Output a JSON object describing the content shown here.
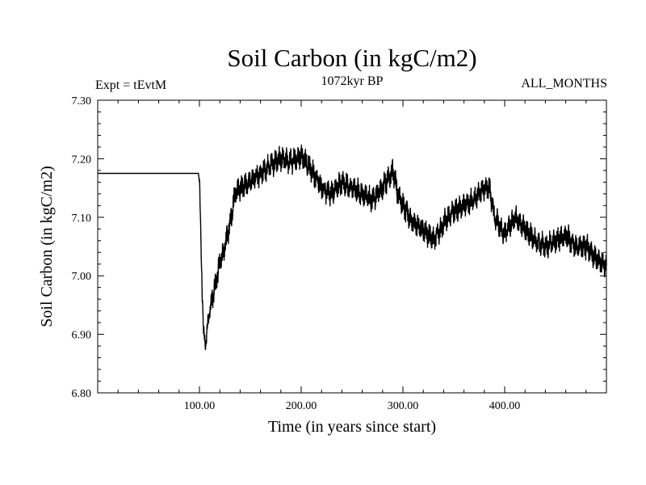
{
  "chart_data": {
    "type": "line",
    "title": "Soil Carbon (in kgC/m2)",
    "subtitle_left": "Expt = tEvtM",
    "subtitle_center": "1072kyr BP",
    "subtitle_right": "ALL_MONTHS",
    "xlabel": "Time (in years since start)",
    "ylabel": "Soil Carbon (in kgC/m2)",
    "xlim": [
      0,
      500
    ],
    "ylim": [
      6.8,
      7.3
    ],
    "x_ticks": [
      100,
      200,
      300,
      400
    ],
    "x_tick_labels": [
      "100.00",
      "200.00",
      "300.00",
      "400.00"
    ],
    "y_ticks": [
      6.8,
      6.9,
      7.0,
      7.1,
      7.2,
      7.3
    ],
    "y_tick_labels": [
      "6.80",
      "6.90",
      "7.00",
      "7.10",
      "7.20",
      "7.30"
    ],
    "grid": false,
    "series": [
      {
        "name": "Soil Carbon",
        "color": "#000000",
        "x": [
          0,
          99,
          100,
          102,
          104,
          106,
          110,
          115,
          120,
          125,
          130,
          135,
          140,
          150,
          160,
          170,
          180,
          190,
          200,
          205,
          210,
          220,
          230,
          240,
          250,
          260,
          270,
          280,
          290,
          295,
          300,
          310,
          320,
          330,
          340,
          350,
          360,
          370,
          380,
          385,
          390,
          400,
          410,
          420,
          430,
          440,
          450,
          460,
          470,
          480,
          490,
          500
        ],
        "values": [
          7.175,
          7.175,
          7.16,
          7.02,
          6.9,
          6.885,
          6.94,
          6.98,
          7.02,
          7.05,
          7.09,
          7.14,
          7.15,
          7.16,
          7.175,
          7.19,
          7.2,
          7.195,
          7.205,
          7.195,
          7.18,
          7.15,
          7.14,
          7.16,
          7.15,
          7.14,
          7.13,
          7.15,
          7.18,
          7.14,
          7.12,
          7.09,
          7.08,
          7.06,
          7.09,
          7.11,
          7.12,
          7.13,
          7.15,
          7.15,
          7.1,
          7.07,
          7.1,
          7.08,
          7.06,
          7.05,
          7.06,
          7.07,
          7.05,
          7.05,
          7.03,
          7.015
        ]
      }
    ]
  }
}
